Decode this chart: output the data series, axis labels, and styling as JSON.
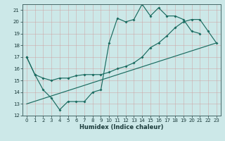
{
  "xlabel": "Humidex (Indice chaleur)",
  "bg_color": "#cce8e8",
  "grid_color": "#aacccc",
  "line_color": "#1a6b60",
  "xlim": [
    0,
    23
  ],
  "ylim": [
    12,
    21.5
  ],
  "yticks": [
    12,
    13,
    14,
    15,
    16,
    17,
    18,
    19,
    20,
    21
  ],
  "xticks": [
    0,
    1,
    2,
    3,
    4,
    5,
    6,
    7,
    8,
    9,
    10,
    11,
    12,
    13,
    14,
    15,
    16,
    17,
    18,
    19,
    20,
    21,
    22,
    23
  ],
  "line1_x": [
    0,
    1,
    2,
    3,
    4,
    5,
    6,
    7,
    8,
    9,
    10,
    11,
    12,
    13,
    14,
    15,
    16,
    17,
    18,
    19,
    20,
    21
  ],
  "line1_y": [
    17.0,
    15.5,
    14.2,
    13.5,
    12.5,
    13.2,
    13.2,
    13.2,
    14.0,
    14.2,
    18.2,
    20.3,
    20.0,
    20.2,
    21.5,
    20.5,
    21.2,
    20.5,
    20.5,
    20.2,
    19.2,
    19.0
  ],
  "line2_x": [
    0,
    1,
    2,
    3,
    4,
    5,
    6,
    7,
    8,
    9,
    10,
    11,
    12,
    13,
    14,
    15,
    16,
    17,
    18,
    19,
    20,
    21,
    22,
    23
  ],
  "line2_y": [
    17.0,
    15.5,
    15.2,
    15.0,
    15.2,
    15.2,
    15.4,
    15.5,
    15.5,
    15.5,
    15.7,
    16.0,
    16.2,
    16.5,
    17.0,
    17.8,
    18.2,
    18.8,
    19.5,
    20.0,
    20.2,
    20.2,
    19.2,
    18.2
  ],
  "line3_x": [
    0,
    23
  ],
  "line3_y": [
    13.0,
    18.2
  ]
}
